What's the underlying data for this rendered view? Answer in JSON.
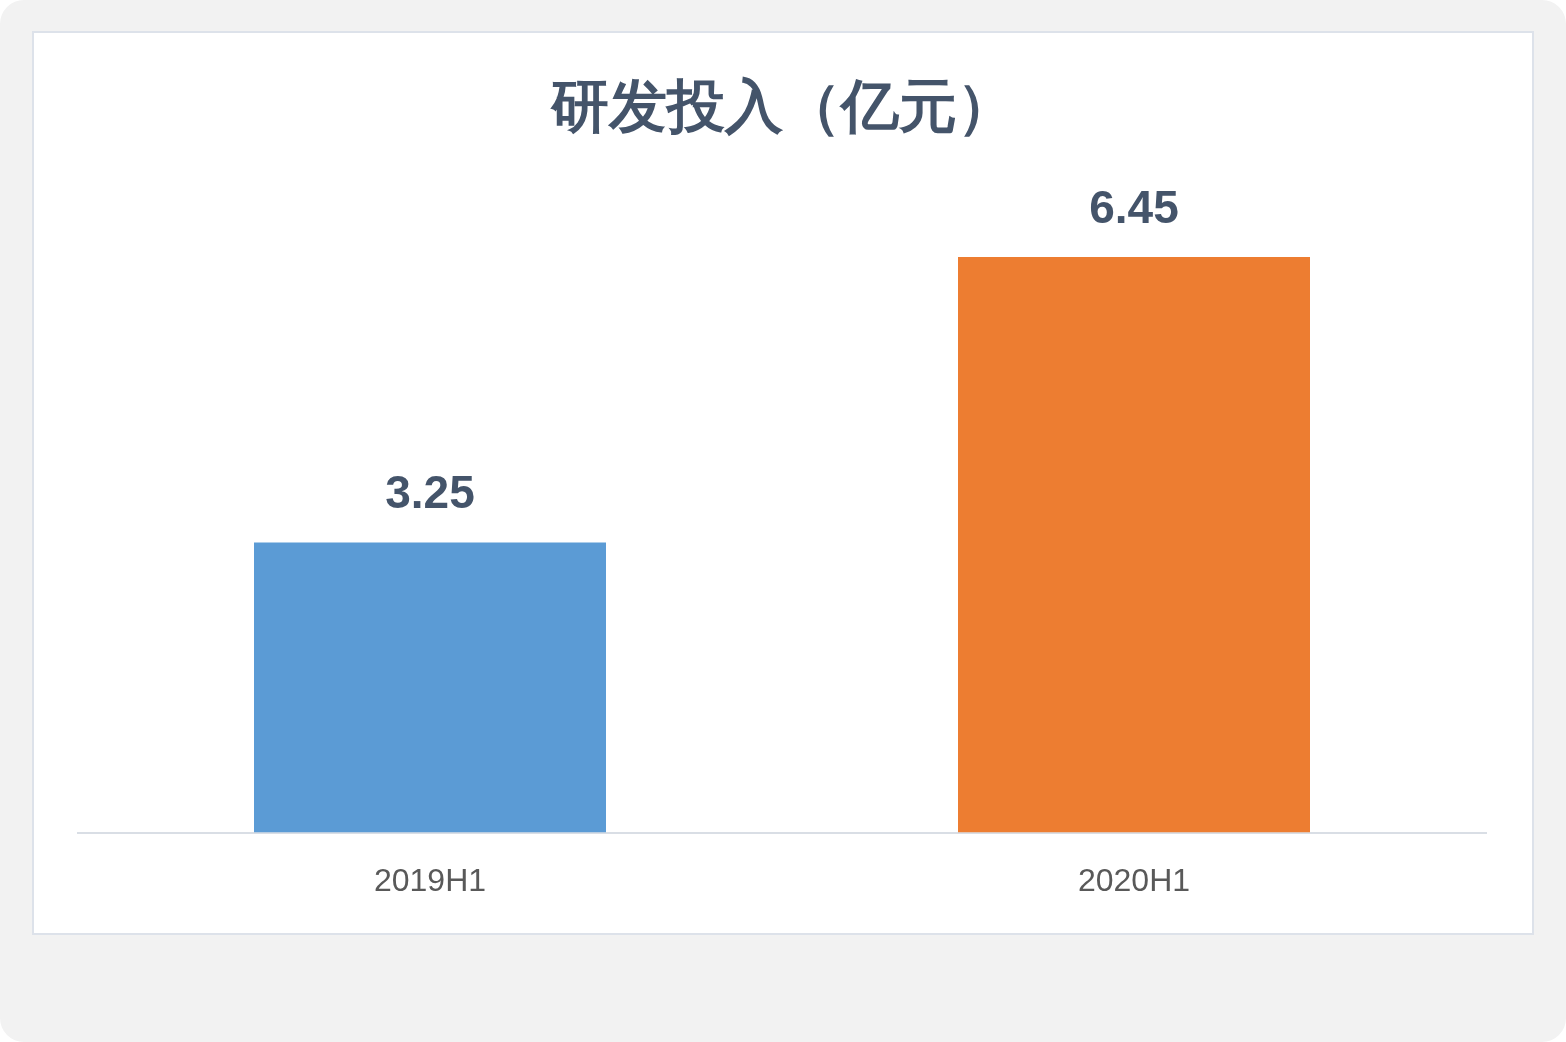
{
  "chart_data": {
    "type": "bar",
    "title": "研发投入（亿元）",
    "categories": [
      "2019H1",
      "2020H1"
    ],
    "values": [
      3.25,
      6.45
    ],
    "colors": [
      "#5b9bd5",
      "#ed7d31"
    ],
    "data_labels": true
  }
}
